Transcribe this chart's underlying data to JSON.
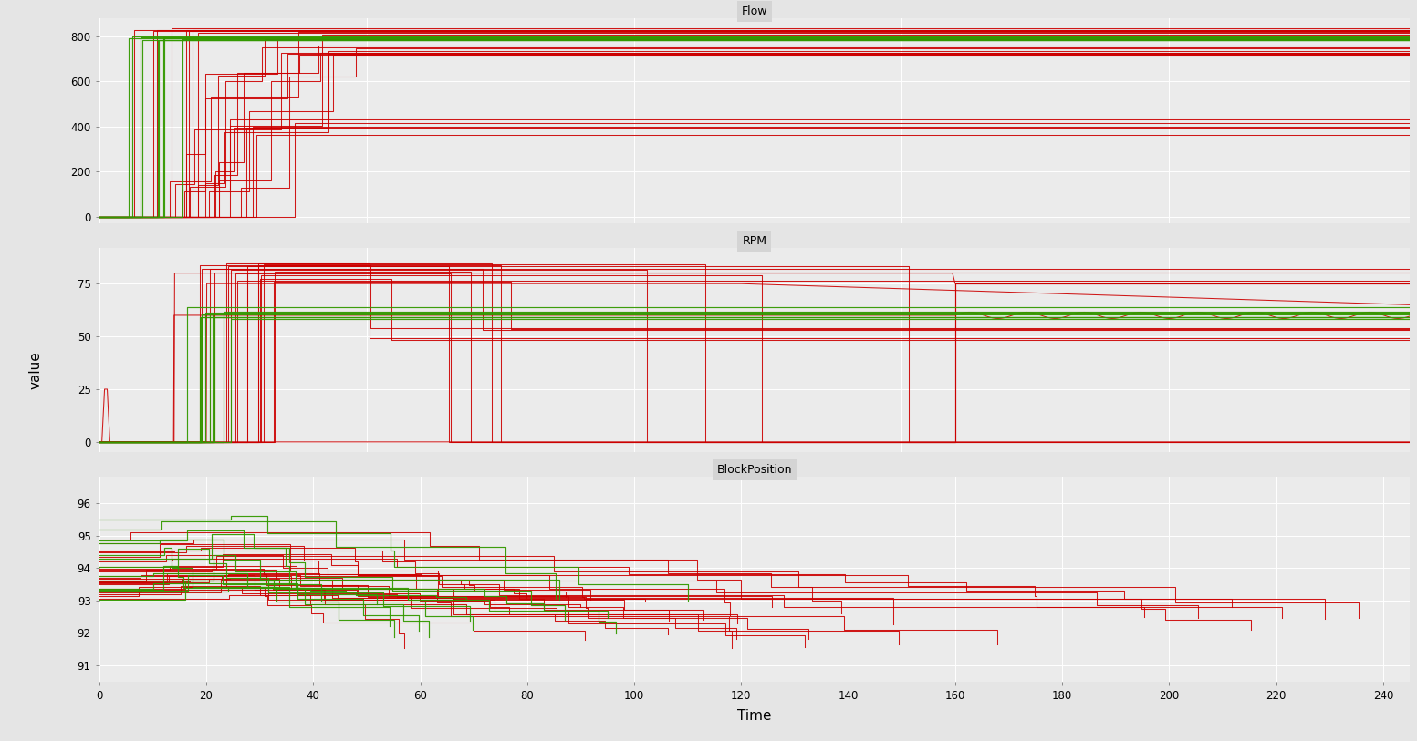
{
  "title_flow": "Flow",
  "title_rpm": "RPM",
  "title_block": "BlockPosition",
  "xlabel": "Time",
  "ylabel": "value",
  "fig_bg": "#e5e5e5",
  "panel_bg": "#ebebeb",
  "title_bar_bg": "#d4d4d4",
  "grid_color": "#ffffff",
  "red": "#cc0000",
  "green": "#339900",
  "x_max": 245,
  "x_ticks": [
    0,
    20,
    40,
    60,
    80,
    100,
    120,
    140,
    160,
    180,
    200,
    220,
    240
  ],
  "flow_yticks": [
    0,
    200,
    400,
    600,
    800
  ],
  "flow_ylim": [
    -30,
    880
  ],
  "rpm_yticks": [
    0,
    25,
    50,
    75
  ],
  "rpm_ylim": [
    -5,
    92
  ],
  "block_yticks": [
    91,
    92,
    93,
    94,
    95,
    96
  ],
  "block_ylim": [
    90.5,
    96.8
  ]
}
